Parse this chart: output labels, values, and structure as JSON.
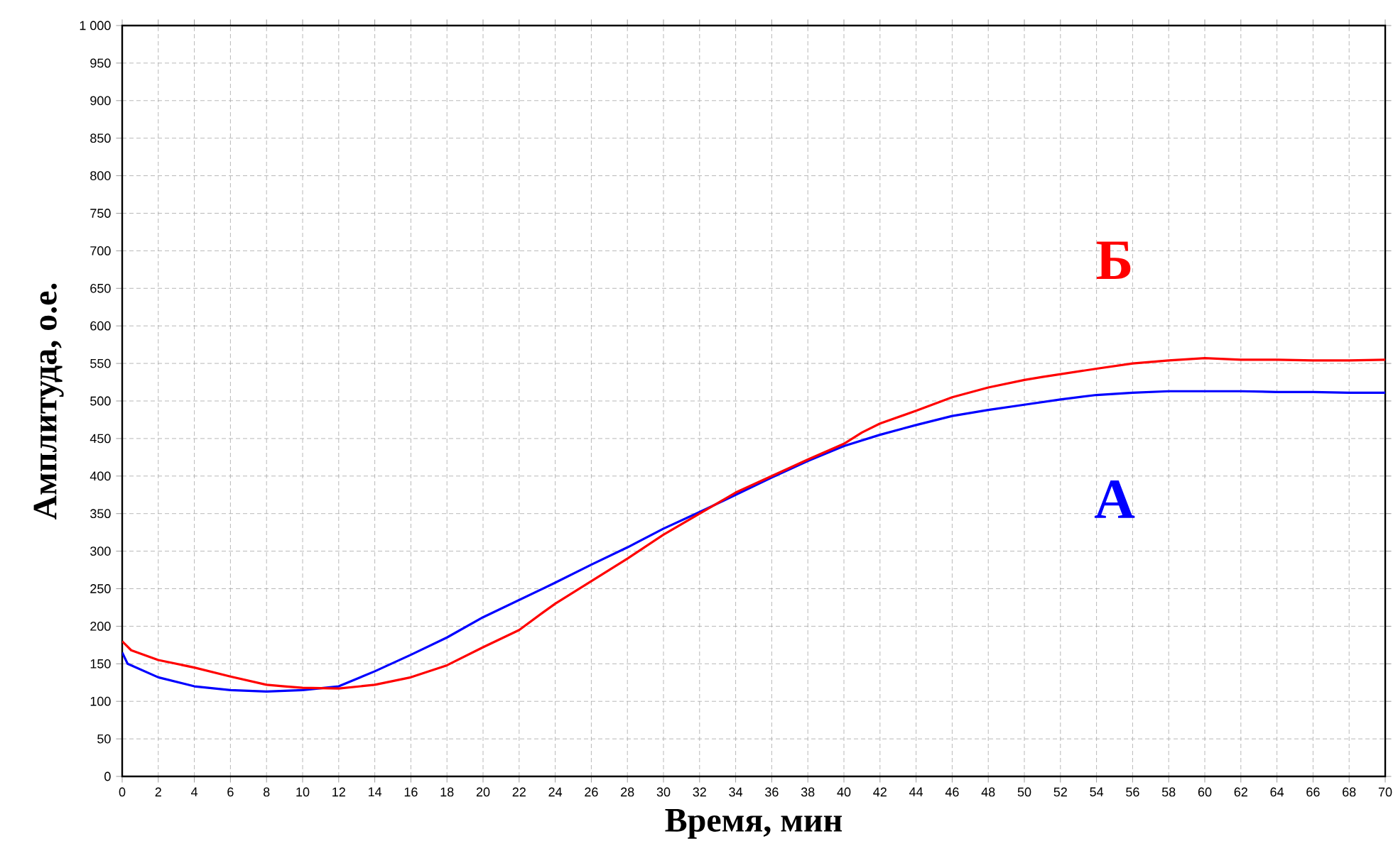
{
  "chart_data": {
    "type": "line",
    "xlabel": "Время, мин",
    "ylabel": "Амплитуда, о.е.",
    "grid": true,
    "line_style": "solid",
    "xlim": [
      0,
      70
    ],
    "xticks": [
      0,
      2,
      4,
      6,
      8,
      10,
      12,
      14,
      16,
      18,
      20,
      22,
      24,
      26,
      28,
      30,
      32,
      34,
      36,
      38,
      40,
      42,
      44,
      46,
      48,
      50,
      52,
      54,
      56,
      58,
      60,
      62,
      64,
      66,
      68,
      70
    ],
    "ylim": [
      0,
      1000
    ],
    "yticks": [
      0,
      50,
      100,
      150,
      200,
      250,
      300,
      350,
      400,
      450,
      500,
      550,
      600,
      650,
      700,
      750,
      800,
      850,
      900,
      950,
      {
        "value": 1000,
        "label": "1 000"
      }
    ],
    "series": [
      {
        "name": "А",
        "color": "#0000ff",
        "x": [
          0,
          0.3,
          2,
          4,
          6,
          8,
          10,
          12,
          14,
          16,
          18,
          20,
          22,
          24,
          26,
          28,
          30,
          32,
          34,
          36,
          38,
          40,
          42,
          44,
          46,
          48,
          50,
          52,
          54,
          56,
          58,
          60,
          62,
          64,
          66,
          68,
          70
        ],
        "values": [
          165,
          150,
          132,
          120,
          115,
          113,
          115,
          120,
          140,
          162,
          185,
          212,
          235,
          258,
          282,
          305,
          330,
          352,
          375,
          398,
          420,
          440,
          455,
          468,
          480,
          488,
          495,
          502,
          508,
          511,
          513,
          513,
          513,
          512,
          512,
          511,
          511
        ]
      },
      {
        "name": "Б",
        "color": "#ff0000",
        "x": [
          0,
          0.5,
          2,
          4,
          6,
          8,
          9,
          10,
          12,
          14,
          16,
          18,
          20,
          22,
          23.3,
          24,
          26,
          28,
          30,
          32,
          34,
          36,
          38,
          40,
          41,
          42,
          44,
          46,
          48,
          50,
          51,
          54,
          56,
          58,
          60,
          62,
          64,
          66,
          68,
          70
        ],
        "values": [
          180,
          168,
          155,
          145,
          133,
          122,
          120,
          118,
          117,
          122,
          132,
          148,
          172,
          195,
          218,
          230,
          260,
          290,
          322,
          350,
          378,
          400,
          422,
          443,
          458,
          470,
          487,
          505,
          518,
          528,
          532,
          543,
          550,
          554,
          557,
          555,
          555,
          554,
          554,
          555
        ]
      }
    ]
  }
}
